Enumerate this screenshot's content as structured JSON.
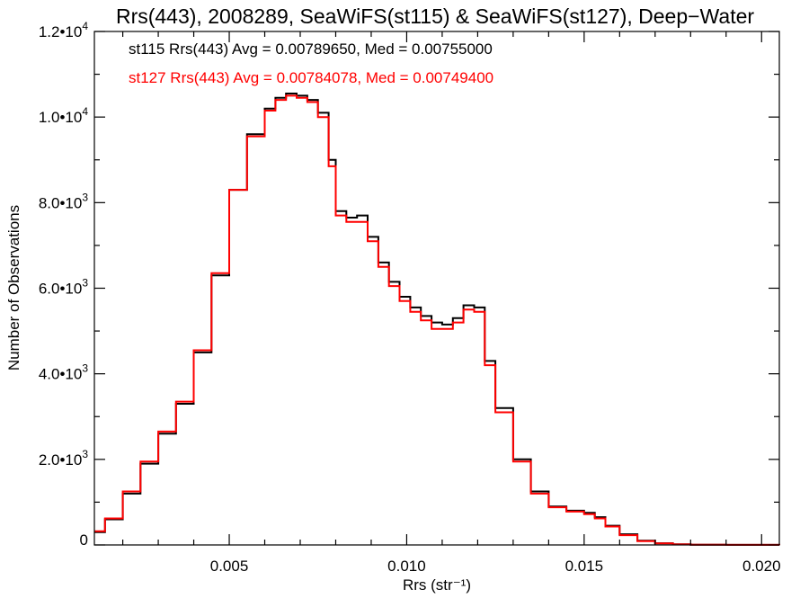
{
  "chart_data": {
    "type": "line",
    "step": true,
    "title": "Rrs(443), 2008289, SeaWiFS(st115) & SeaWiFS(st127), Deep−Water",
    "xlabel": "Rrs (str⁻¹)",
    "ylabel": "Number of Observations",
    "xlim": [
      0.0012,
      0.0205
    ],
    "ylim": [
      0,
      12000
    ],
    "x_ticks": [
      {
        "value": 0.005,
        "label": "0.005"
      },
      {
        "value": 0.01,
        "label": "0.010"
      },
      {
        "value": 0.015,
        "label": "0.015"
      },
      {
        "value": 0.02,
        "label": "0.020"
      }
    ],
    "y_ticks": [
      {
        "value": 0,
        "mant": "0",
        "exp": ""
      },
      {
        "value": 2000,
        "mant": "2.0•10",
        "exp": "3"
      },
      {
        "value": 4000,
        "mant": "4.0•10",
        "exp": "3"
      },
      {
        "value": 6000,
        "mant": "6.0•10",
        "exp": "3"
      },
      {
        "value": 8000,
        "mant": "8.0•10",
        "exp": "3"
      },
      {
        "value": 10000,
        "mant": "1.0•10",
        "exp": "4"
      },
      {
        "value": 12000,
        "mant": "1.2•10",
        "exp": "4"
      }
    ],
    "grid": false,
    "annotations": [
      {
        "text": "st115 Rrs(443) Avg = 0.00789650, Med = 0.00755000",
        "color": "#000000"
      },
      {
        "text": "st127 Rrs(443) Avg = 0.00784078, Med = 0.00749400",
        "color": "#ff0000"
      }
    ],
    "series": [
      {
        "color": "#000000",
        "x": [
          0.0012,
          0.0015,
          0.002,
          0.0025,
          0.003,
          0.0035,
          0.004,
          0.0045,
          0.005,
          0.0055,
          0.006,
          0.0063,
          0.0066,
          0.0069,
          0.0072,
          0.0075,
          0.0078,
          0.008,
          0.0083,
          0.0086,
          0.0089,
          0.0092,
          0.0095,
          0.0098,
          0.0101,
          0.0104,
          0.0107,
          0.011,
          0.0113,
          0.0116,
          0.0119,
          0.0122,
          0.0125,
          0.013,
          0.0135,
          0.014,
          0.0145,
          0.015,
          0.0153,
          0.0156,
          0.016,
          0.0165,
          0.017,
          0.0175,
          0.018,
          0.019,
          0.0205
        ],
        "values": [
          300,
          600,
          1200,
          1900,
          2600,
          3300,
          4500,
          6300,
          8300,
          9600,
          10200,
          10450,
          10550,
          10500,
          10400,
          10100,
          9000,
          7800,
          7650,
          7700,
          7200,
          6600,
          6150,
          5800,
          5550,
          5350,
          5200,
          5150,
          5300,
          5600,
          5550,
          4300,
          3200,
          2000,
          1250,
          900,
          800,
          750,
          650,
          450,
          250,
          100,
          40,
          15,
          6,
          2,
          0
        ]
      },
      {
        "color": "#ff0000",
        "x": [
          0.0012,
          0.0015,
          0.002,
          0.0025,
          0.003,
          0.0035,
          0.004,
          0.0045,
          0.005,
          0.0055,
          0.006,
          0.0063,
          0.0066,
          0.0069,
          0.0072,
          0.0075,
          0.0078,
          0.008,
          0.0083,
          0.0086,
          0.0089,
          0.0092,
          0.0095,
          0.0098,
          0.0101,
          0.0104,
          0.0107,
          0.011,
          0.0113,
          0.0116,
          0.0119,
          0.0122,
          0.0125,
          0.013,
          0.0135,
          0.014,
          0.0145,
          0.015,
          0.0153,
          0.0156,
          0.016,
          0.0165,
          0.017,
          0.0175,
          0.018,
          0.019,
          0.0205
        ],
        "values": [
          320,
          620,
          1250,
          1950,
          2650,
          3350,
          4550,
          6350,
          8300,
          9550,
          10150,
          10400,
          10500,
          10450,
          10350,
          10000,
          8850,
          7700,
          7550,
          7550,
          7100,
          6500,
          6050,
          5700,
          5450,
          5250,
          5050,
          5050,
          5200,
          5500,
          5450,
          4200,
          3100,
          1950,
          1200,
          880,
          780,
          720,
          620,
          430,
          230,
          90,
          35,
          12,
          5,
          2,
          0
        ]
      }
    ]
  }
}
